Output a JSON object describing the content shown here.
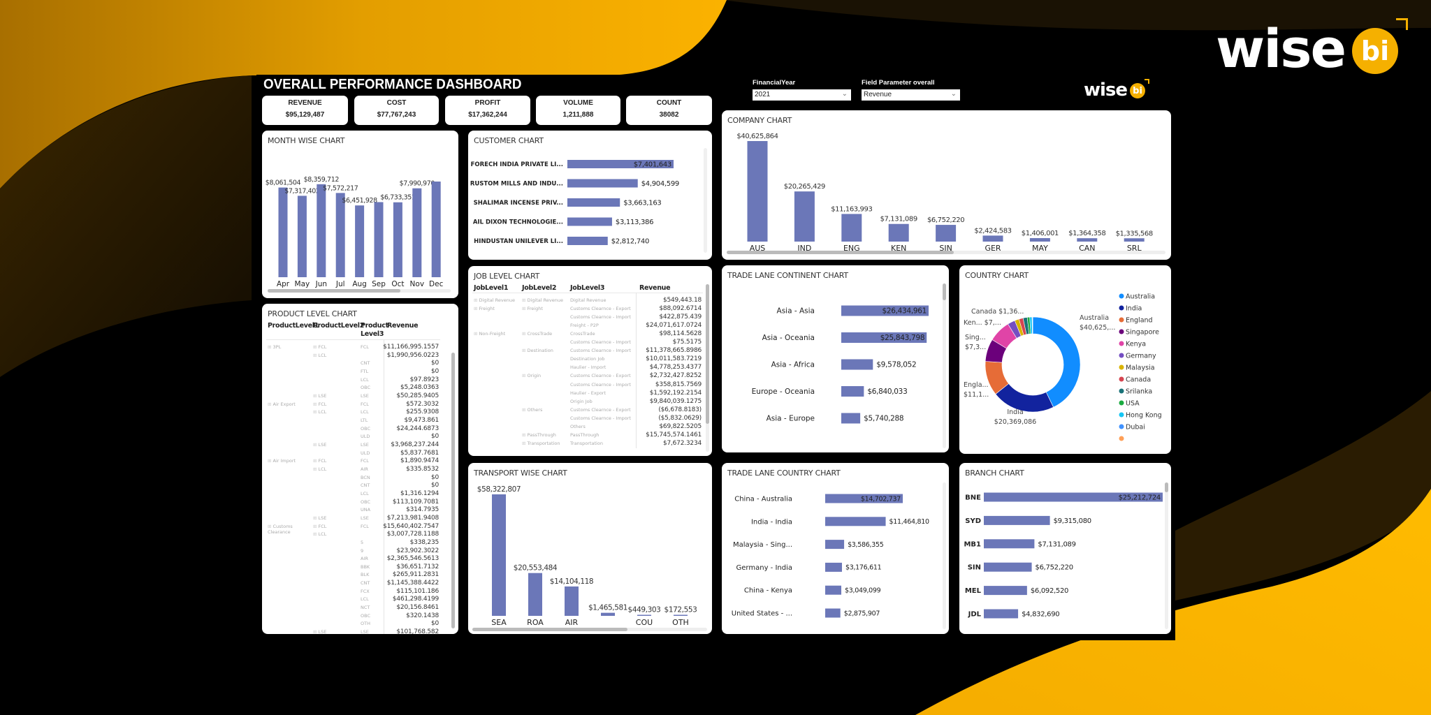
{
  "brand": {
    "logo_text": "wise",
    "logo_badge": "bi"
  },
  "header": {
    "title": "OVERALL PERFORMANCE DASHBOARD",
    "filters": [
      {
        "label": "FinancialYear",
        "value": "2021"
      },
      {
        "label": "Field Parameter overall",
        "value": "Revenue"
      }
    ]
  },
  "kpis": [
    {
      "label": "REVENUE",
      "value": "$95,129,487"
    },
    {
      "label": "COST",
      "value": "$77,767,243"
    },
    {
      "label": "PROFIT",
      "value": "$17,362,244"
    },
    {
      "label": "VOLUME",
      "value": "1,211,888"
    },
    {
      "label": "COUNT",
      "value": "38082"
    }
  ],
  "colors": {
    "bar": "#6b77b8",
    "accent": "#f5b000",
    "background": "#000000",
    "card": "#ffffff"
  },
  "icons": {
    "expand": "expand-plus-icon",
    "dropdown": "chevron-down-icon"
  },
  "product_table": {
    "title": "PRODUCT LEVEL CHART",
    "columns": [
      "ProductLevel1",
      "ProductLevel2",
      "Product Level3",
      "Revenue"
    ],
    "rows": [
      [
        "3PL",
        "FCL",
        "FCL",
        "$11,166,995.1557"
      ],
      [
        "",
        "LCL",
        "",
        "$1,990,956.0223"
      ],
      [
        "",
        "",
        "CNT",
        "$0"
      ],
      [
        "",
        "",
        "FTL",
        "$0"
      ],
      [
        "",
        "",
        "LCL",
        "$97.8923"
      ],
      [
        "",
        "",
        "OBC",
        "$5,248.0363"
      ],
      [
        "",
        "LSE",
        "LSE",
        "$50,285.9405"
      ],
      [
        "Air Export",
        "FCL",
        "FCL",
        "$572.3032"
      ],
      [
        "",
        "LCL",
        "LCL",
        "$255.9308"
      ],
      [
        "",
        "",
        "LTL",
        "$9,473.861"
      ],
      [
        "",
        "",
        "OBC",
        "$24,244.6873"
      ],
      [
        "",
        "",
        "ULD",
        "$0"
      ],
      [
        "",
        "LSE",
        "LSE",
        "$3,968,237.244"
      ],
      [
        "",
        "",
        "ULD",
        "$5,837.7681"
      ],
      [
        "Air Import",
        "FCL",
        "FCL",
        "$1,890.9474"
      ],
      [
        "",
        "LCL",
        "AIR",
        "$335.8532"
      ],
      [
        "",
        "",
        "BCN",
        "$0"
      ],
      [
        "",
        "",
        "CNT",
        "$0"
      ],
      [
        "",
        "",
        "LCL",
        "$1,316.1294"
      ],
      [
        "",
        "",
        "OBC",
        "$113,109.7081"
      ],
      [
        "",
        "",
        "UNA",
        "$314.7935"
      ],
      [
        "",
        "LSE",
        "LSE",
        "$7,213,981.9408"
      ],
      [
        "Customs Clearance",
        "FCL",
        "FCL",
        "$15,640,402.7547"
      ],
      [
        "",
        "LCL",
        "",
        "$3,007,728.1188"
      ],
      [
        "",
        "",
        "5",
        "$338,235"
      ],
      [
        "",
        "",
        "9",
        "$23,902.3022"
      ],
      [
        "",
        "",
        "AIR",
        "$2,365,546.5613"
      ],
      [
        "",
        "",
        "BBK",
        "$36,651.7132"
      ],
      [
        "",
        "",
        "BLK",
        "$265,911.2831"
      ],
      [
        "",
        "",
        "CNT",
        "$1,145,388.4422"
      ],
      [
        "",
        "",
        "FCX",
        "$115,101.186"
      ],
      [
        "",
        "",
        "LCL",
        "$461,298.4199"
      ],
      [
        "",
        "",
        "NCT",
        "$20,156.8461"
      ],
      [
        "",
        "",
        "OBC",
        "$320.1438"
      ],
      [
        "",
        "",
        "OTH",
        "$0"
      ],
      [
        "",
        "LSE",
        "LSE",
        "$101,768.582"
      ]
    ]
  },
  "job_table": {
    "title": "JOB LEVEL CHART",
    "columns": [
      "JobLevel1",
      "JobLevel2",
      "JobLevel3",
      "Revenue"
    ],
    "rows": [
      [
        "Digital Revenue",
        "Digital Revenue",
        "Digital Revenue",
        "$549,443.18"
      ],
      [
        "Freight",
        "Freight",
        "Customs Clearnce - Export",
        "$88,092.6714"
      ],
      [
        "",
        "",
        "Customs Clearnce - Import",
        "$422,875.439"
      ],
      [
        "",
        "",
        "Freight - P2P",
        "$24,071,617.0724"
      ],
      [
        "Non-Freight",
        "CrossTrade",
        "CrossTrade",
        "$98,114.5628"
      ],
      [
        "",
        "",
        "Customs Clearnce - Import",
        "$75.5175"
      ],
      [
        "",
        "Destination",
        "Customs Clearnce - Import",
        "$11,378,665.8986"
      ],
      [
        "",
        "",
        "Destination Job",
        "$10,011,583.7219"
      ],
      [
        "",
        "",
        "Haulier - Import",
        "$4,778,253.4377"
      ],
      [
        "",
        "Origin",
        "Customs Clearnce - Export",
        "$2,732,427.8252"
      ],
      [
        "",
        "",
        "Customs Clearnce - Import",
        "$358,815.7569"
      ],
      [
        "",
        "",
        "Haulier - Export",
        "$1,592,192.2154"
      ],
      [
        "",
        "",
        "Origin Job",
        "$9,840,039.1275"
      ],
      [
        "",
        "Others",
        "Customs Clearnce - Export",
        "($6,678.8183)"
      ],
      [
        "",
        "",
        "Customs Clearnce - Import",
        "($5,832.0629)"
      ],
      [
        "",
        "",
        "Others",
        "$69,822.5205"
      ],
      [
        "",
        "PassThrough",
        "PassThrough",
        "$15,745,574.1461"
      ],
      [
        "",
        "Transportation",
        "Transportation",
        "$7,672.3234"
      ]
    ]
  },
  "chart_data": [
    {
      "title": "MONTH WISE CHART",
      "type": "bar",
      "categories": [
        "Apr",
        "May",
        "Jun",
        "Jul",
        "Aug",
        "Sep",
        "Oct",
        "Nov",
        "Dec"
      ],
      "values": [
        8061504,
        7317402,
        8359712,
        7572217,
        6451928,
        6750000,
        6733351,
        7990970,
        8600000
      ],
      "data_labels": [
        "$8,061,504",
        "$7,317,402",
        "$8,359,712",
        "$7,572,217",
        "$6,451,928",
        null,
        "$6,733,351",
        "$7,990,970",
        null
      ]
    },
    {
      "title": "CUSTOMER CHART",
      "type": "bar",
      "orientation": "horizontal",
      "categories": [
        "FORECH INDIA PRIVATE LI...",
        "RUSTOM MILLS AND INDU...",
        "SHALIMAR INCENSE PRIV...",
        "AIL DIXON TECHNOLOGIE...",
        "HINDUSTAN UNILEVER LI..."
      ],
      "values": [
        7401643,
        4904599,
        3663163,
        3113386,
        2812740
      ]
    },
    {
      "title": "COMPANY CHART",
      "type": "bar",
      "categories": [
        "AUS",
        "IND",
        "ENG",
        "KEN",
        "SIN",
        "GER",
        "MAY",
        "CAN",
        "SRL"
      ],
      "values": [
        40625864,
        20265429,
        11163993,
        7131089,
        6752220,
        2424583,
        1406001,
        1364358,
        1335568
      ]
    },
    {
      "title": "TRANSPORT WISE CHART",
      "type": "bar",
      "categories": [
        "SEA",
        "ROA",
        "AIR",
        "",
        "COU",
        "OTH"
      ],
      "values": [
        58322807,
        20553484,
        14104118,
        1465581,
        449303,
        172553
      ]
    },
    {
      "title": "TRADE LANE CONTINENT CHART",
      "type": "bar",
      "orientation": "horizontal",
      "categories": [
        "Asia - Asia",
        "Asia - Oceania",
        "Asia - Africa",
        "Europe - Oceania",
        "Asia - Europe"
      ],
      "values": [
        26434961,
        25843798,
        9578052,
        6840033,
        5740288
      ]
    },
    {
      "title": "COUNTRY CHART",
      "type": "pie",
      "subtype": "donut",
      "legend": "right",
      "categories": [
        "Australia",
        "India",
        "England",
        "Singapore",
        "Kenya",
        "Germany",
        "Malaysia",
        "Canada",
        "Srilanka",
        "USA",
        "Hong Kong",
        "Dubai",
        ""
      ],
      "values": [
        40625864,
        20369086,
        11163993,
        7300000,
        7131089,
        2424583,
        1406001,
        1364358,
        1335568,
        800000,
        750000,
        150000,
        60000
      ],
      "colors": [
        "#118dff",
        "#12239e",
        "#e66c37",
        "#6b007b",
        "#e044a7",
        "#744ec2",
        "#d9b300",
        "#d64550",
        "#197278",
        "#1aab40",
        "#15c6f4",
        "#4092ff",
        "#ffa058"
      ],
      "data_labels": [
        {
          "name": "Australia",
          "value": "$40,625,..."
        },
        {
          "name": "India",
          "value": "$20,369,086"
        },
        {
          "name": "Engla...",
          "value": "$11,1..."
        },
        {
          "name": "Sing...",
          "value": "$7,3..."
        },
        {
          "name": "Ken...",
          "value": "$7,..."
        },
        {
          "name": "Canada",
          "value": "$1,36..."
        }
      ]
    },
    {
      "title": "TRADE LANE COUNTRY CHART",
      "type": "bar",
      "orientation": "horizontal",
      "categories": [
        "China - Australia",
        "India - India",
        "Malaysia - Sing...",
        "Germany - India",
        "China - Kenya",
        "United States - ..."
      ],
      "values": [
        14702737,
        11464810,
        3586355,
        3176611,
        3049099,
        2875907
      ]
    },
    {
      "title": "BRANCH CHART",
      "type": "bar",
      "orientation": "horizontal",
      "categories": [
        "BNE",
        "SYD",
        "MB1",
        "SIN",
        "MEL",
        "JDL"
      ],
      "values": [
        25212724,
        9315080,
        7131089,
        6752220,
        6092520,
        4832690
      ]
    }
  ]
}
